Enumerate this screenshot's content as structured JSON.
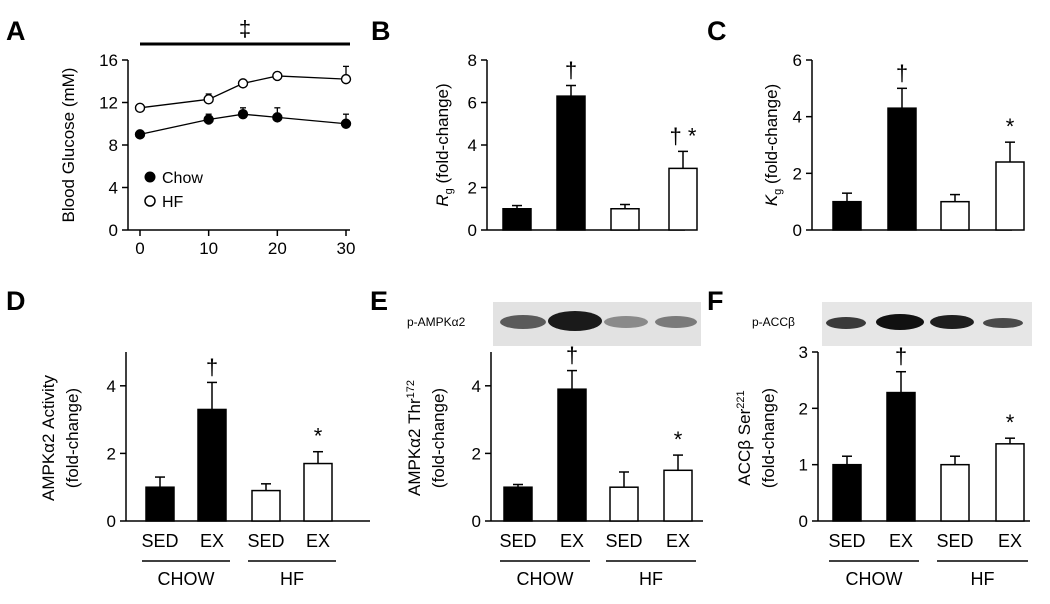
{
  "chart_data": [
    {
      "panel": "A",
      "type": "line",
      "ylabel": "Blood Glucose (mM)",
      "xlim": [
        0,
        30
      ],
      "ylim": [
        0,
        16
      ],
      "x_ticks": [
        "0",
        "10",
        "20",
        "30"
      ],
      "y_ticks": [
        "0",
        "4",
        "8",
        "12",
        "16"
      ],
      "top_annotation": "‡",
      "legend_position": "bottom-left",
      "series": [
        {
          "name": "Chow",
          "marker": "filled-circle",
          "x": [
            0,
            10,
            15,
            20,
            30
          ],
          "values": [
            9.0,
            10.4,
            10.9,
            10.6,
            10.0
          ],
          "errors": [
            0.3,
            0.5,
            0.6,
            0.9,
            0.9
          ]
        },
        {
          "name": "HF",
          "marker": "open-circle",
          "x": [
            0,
            10,
            15,
            20,
            30
          ],
          "values": [
            11.5,
            12.3,
            13.8,
            14.5,
            14.2
          ],
          "errors": [
            0.3,
            0.5,
            0.3,
            0.3,
            1.2
          ]
        }
      ]
    },
    {
      "panel": "B",
      "type": "bar",
      "ylabel_main": "R",
      "ylabel_sub": "g",
      "ylabel_rest": " (fold-change)",
      "ylim": [
        0,
        8
      ],
      "y_ticks": [
        "0",
        "2",
        "4",
        "6",
        "8"
      ],
      "values": [
        1.0,
        6.3,
        1.0,
        2.9
      ],
      "errors": [
        0.15,
        0.5,
        0.2,
        0.8
      ],
      "fills": [
        "#000000",
        "#000000",
        "#ffffff",
        "#ffffff"
      ],
      "annotations": [
        "",
        "†",
        "",
        "† *"
      ]
    },
    {
      "panel": "C",
      "type": "bar",
      "ylabel_main": "K",
      "ylabel_sub": "g",
      "ylabel_rest": " (fold-change)",
      "ylim": [
        0,
        6
      ],
      "y_ticks": [
        "0",
        "2",
        "4",
        "6"
      ],
      "values": [
        1.0,
        4.3,
        1.0,
        2.4
      ],
      "errors": [
        0.3,
        0.7,
        0.25,
        0.7
      ],
      "fills": [
        "#000000",
        "#000000",
        "#ffffff",
        "#ffffff"
      ],
      "annotations": [
        "",
        "†",
        "",
        "*"
      ]
    },
    {
      "panel": "D",
      "type": "bar",
      "ylabel_line1": "AMPKα2 Activity",
      "ylabel_line2": "(fold-change)",
      "ylim": [
        0,
        5
      ],
      "y_ticks": [
        "0",
        "2",
        "4"
      ],
      "categories": [
        "SED",
        "EX",
        "SED",
        "EX"
      ],
      "groups": [
        "CHOW",
        "HF"
      ],
      "values": [
        1.0,
        3.3,
        0.9,
        1.7
      ],
      "errors": [
        0.3,
        0.8,
        0.2,
        0.35
      ],
      "fills": [
        "#000000",
        "#000000",
        "#ffffff",
        "#ffffff"
      ],
      "annotations": [
        "",
        "†",
        "",
        "*"
      ]
    },
    {
      "panel": "E",
      "type": "bar",
      "blot_label": "p-AMPKα2",
      "ylabel_line1_main": "AMPKα2 Thr",
      "ylabel_line1_sup": "172",
      "ylabel_line2": "(fold-change)",
      "ylim": [
        0,
        5
      ],
      "y_ticks": [
        "0",
        "2",
        "4"
      ],
      "categories": [
        "SED",
        "EX",
        "SED",
        "EX"
      ],
      "groups": [
        "CHOW",
        "HF"
      ],
      "values": [
        1.0,
        3.9,
        1.0,
        1.5
      ],
      "errors": [
        0.08,
        0.55,
        0.45,
        0.45
      ],
      "fills": [
        "#000000",
        "#000000",
        "#ffffff",
        "#ffffff"
      ],
      "annotations": [
        "",
        "†",
        "",
        "*"
      ]
    },
    {
      "panel": "F",
      "type": "bar",
      "blot_label": "p-ACCβ",
      "ylabel_line1_main": "ACCβ Ser",
      "ylabel_line1_sup": "221",
      "ylabel_line2": "(fold-change)",
      "ylim": [
        0,
        3
      ],
      "y_ticks": [
        "0",
        "1",
        "2",
        "3"
      ],
      "categories": [
        "SED",
        "EX",
        "SED",
        "EX"
      ],
      "groups": [
        "CHOW",
        "HF"
      ],
      "values": [
        1.0,
        2.28,
        1.0,
        1.37
      ],
      "errors": [
        0.15,
        0.37,
        0.15,
        0.1
      ],
      "fills": [
        "#000000",
        "#000000",
        "#ffffff",
        "#ffffff"
      ],
      "annotations": [
        "",
        "†",
        "",
        "*"
      ]
    }
  ]
}
